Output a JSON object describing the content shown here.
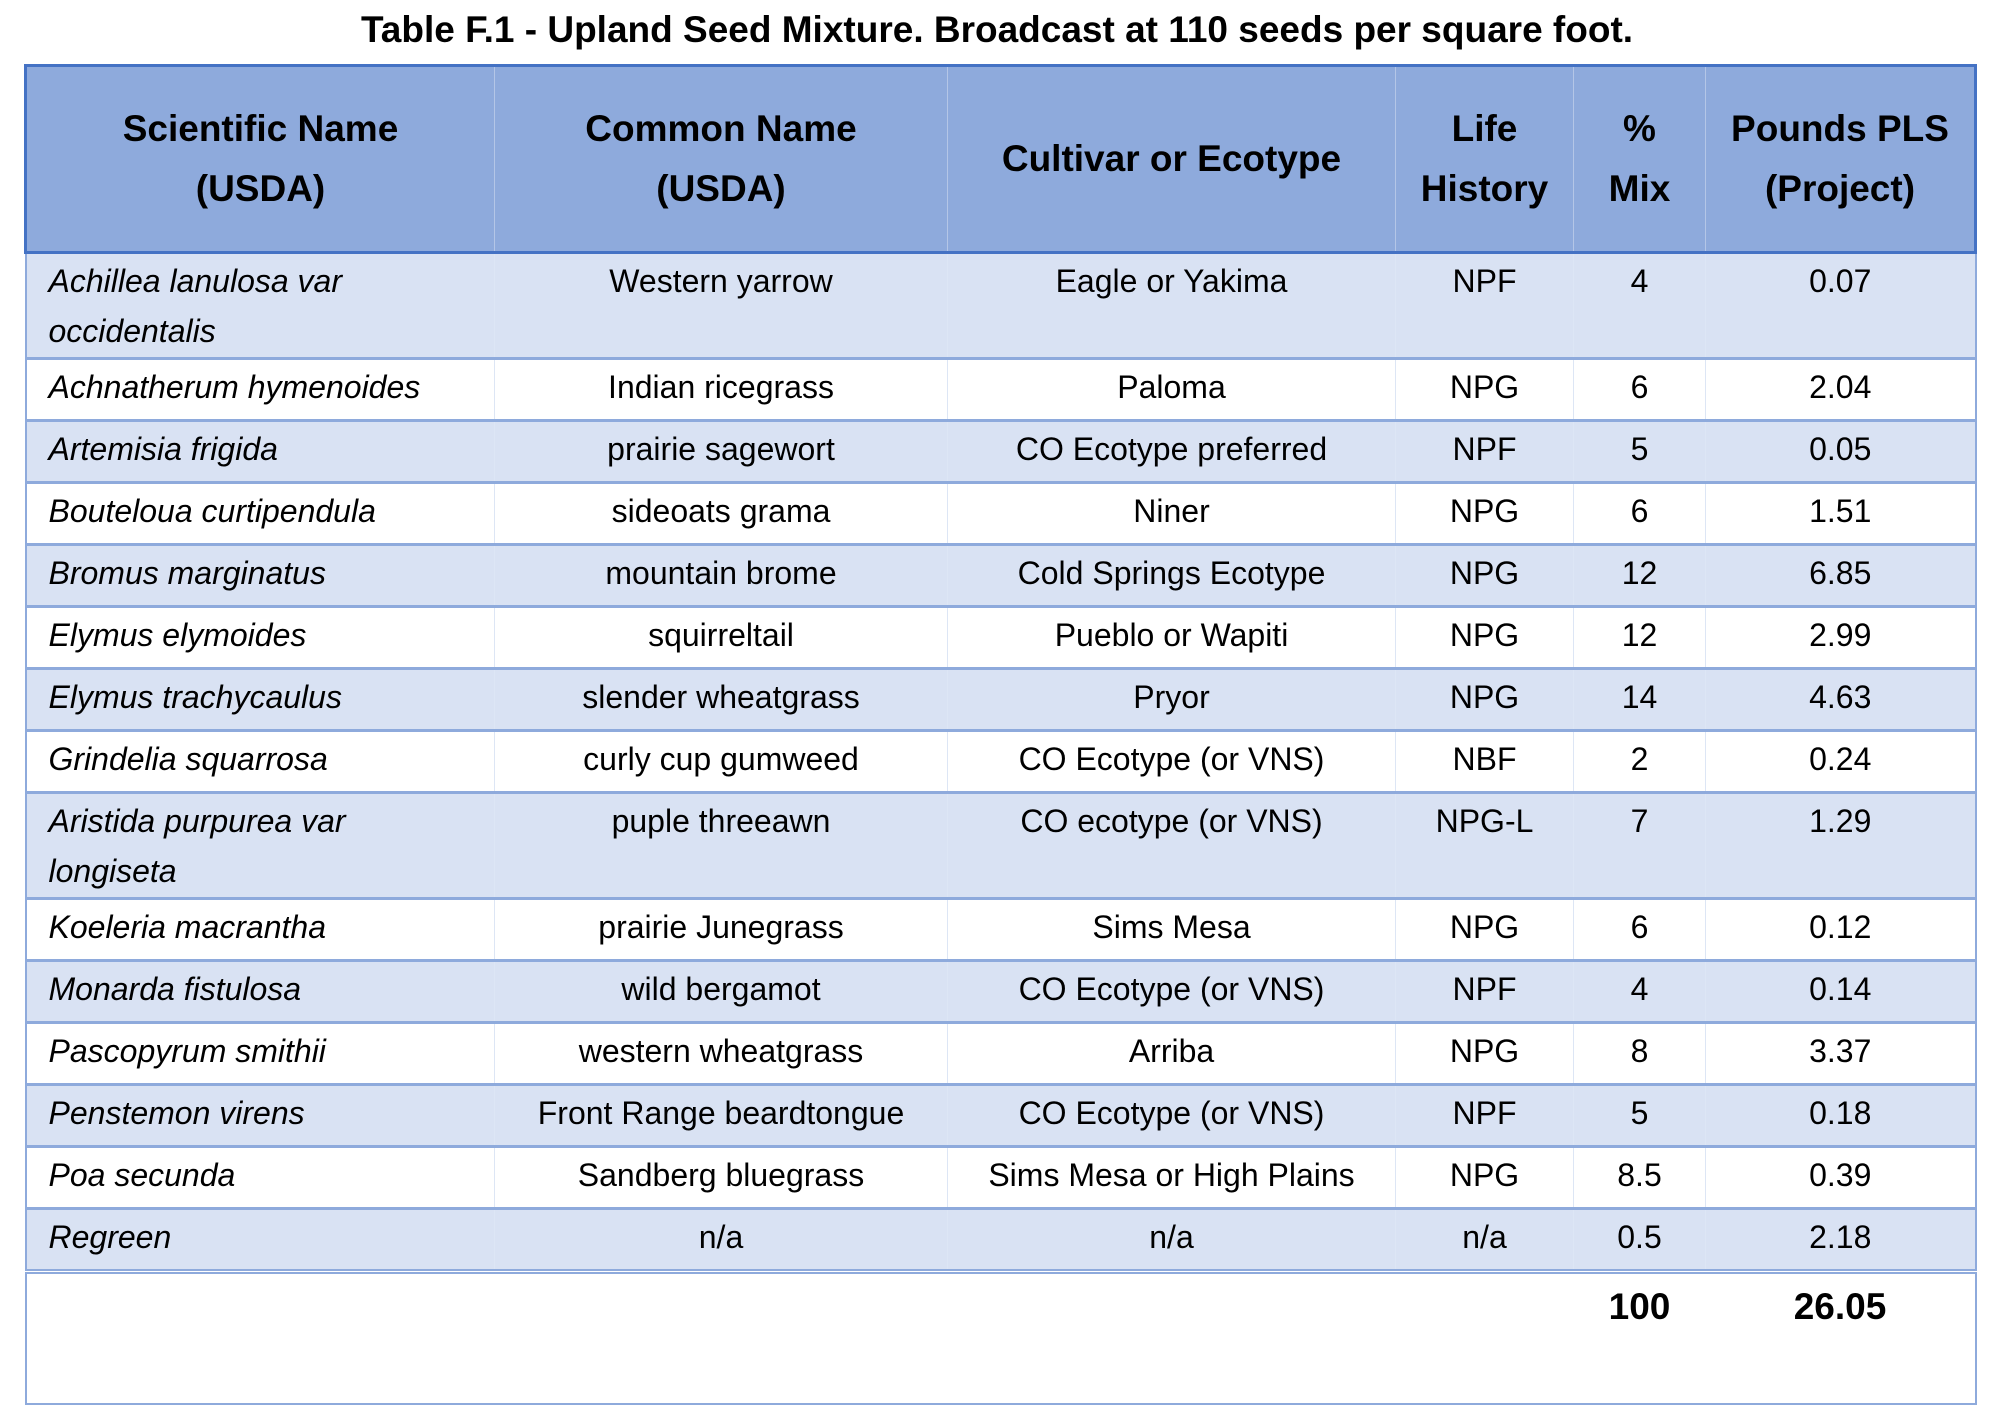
{
  "title": "Table F.1 - Upland Seed Mixture. Broadcast at 110 seeds per square foot.",
  "headers": {
    "scientific": [
      "Scientific Name",
      "(USDA)"
    ],
    "common": [
      "Common Name",
      "(USDA)"
    ],
    "cultivar": [
      "Cultivar or Ecotype"
    ],
    "life": [
      "Life",
      "History"
    ],
    "mix": [
      "%",
      "Mix"
    ],
    "pounds": [
      "Pounds PLS",
      "(Project)"
    ]
  },
  "rows": [
    {
      "scientific": [
        "Achillea lanulosa var",
        "occidentalis"
      ],
      "common": "Western yarrow",
      "cultivar": "Eagle or Yakima",
      "life": "NPF",
      "mix": "4",
      "pounds": "0.07"
    },
    {
      "scientific": [
        "Achnatherum hymenoides"
      ],
      "common": "Indian ricegrass",
      "cultivar": "Paloma",
      "life": "NPG",
      "mix": "6",
      "pounds": "2.04"
    },
    {
      "scientific": [
        "Artemisia frigida"
      ],
      "common": "prairie sagewort",
      "cultivar": "CO Ecotype preferred",
      "life": "NPF",
      "mix": "5",
      "pounds": "0.05"
    },
    {
      "scientific": [
        "Bouteloua curtipendula"
      ],
      "common": "sideoats grama",
      "cultivar": "Niner",
      "life": "NPG",
      "mix": "6",
      "pounds": "1.51"
    },
    {
      "scientific": [
        "Bromus marginatus"
      ],
      "common": "mountain brome",
      "cultivar": "Cold Springs Ecotype",
      "life": "NPG",
      "mix": "12",
      "pounds": "6.85"
    },
    {
      "scientific": [
        "Elymus elymoides"
      ],
      "common": "squirreltail",
      "cultivar": "Pueblo or Wapiti",
      "life": "NPG",
      "mix": "12",
      "pounds": "2.99"
    },
    {
      "scientific": [
        "Elymus trachycaulus"
      ],
      "common": "slender wheatgrass",
      "cultivar": "Pryor",
      "life": "NPG",
      "mix": "14",
      "pounds": "4.63"
    },
    {
      "scientific": [
        "Grindelia squarrosa"
      ],
      "common": "curly cup gumweed",
      "cultivar": "CO Ecotype (or VNS)",
      "life": "NBF",
      "mix": "2",
      "pounds": "0.24"
    },
    {
      "scientific": [
        "Aristida purpurea var",
        "longiseta"
      ],
      "common": "puple threeawn",
      "cultivar": "CO ecotype (or VNS)",
      "life": "NPG-L",
      "mix": "7",
      "pounds": "1.29"
    },
    {
      "scientific": [
        "Koeleria macrantha"
      ],
      "common": "prairie Junegrass",
      "cultivar": "Sims Mesa",
      "life": "NPG",
      "mix": "6",
      "pounds": "0.12"
    },
    {
      "scientific": [
        "Monarda fistulosa"
      ],
      "common": "wild bergamot",
      "cultivar": "CO Ecotype (or VNS)",
      "life": "NPF",
      "mix": "4",
      "pounds": "0.14"
    },
    {
      "scientific": [
        "Pascopyrum smithii"
      ],
      "common": "western wheatgrass",
      "cultivar": "Arriba",
      "life": "NPG",
      "mix": "8",
      "pounds": "3.37"
    },
    {
      "scientific": [
        "Penstemon virens"
      ],
      "common": "Front Range beardtongue",
      "cultivar": "CO Ecotype (or VNS)",
      "life": "NPF",
      "mix": "5",
      "pounds": "0.18"
    },
    {
      "scientific": [
        "Poa secunda"
      ],
      "common": "Sandberg bluegrass",
      "cultivar": "Sims Mesa or High Plains",
      "life": "NPG",
      "mix": "8.5",
      "pounds": "0.39"
    },
    {
      "scientific": [
        "Regreen"
      ],
      "common": "n/a",
      "cultivar": "n/a",
      "life": "n/a",
      "mix": "0.5",
      "pounds": "2.18"
    }
  ],
  "totals": {
    "mix": "100",
    "pounds": "26.05"
  },
  "colors": {
    "header_bg": "#8eaadc",
    "row_shade": "#d9e2f3",
    "border": "#4472c4"
  }
}
